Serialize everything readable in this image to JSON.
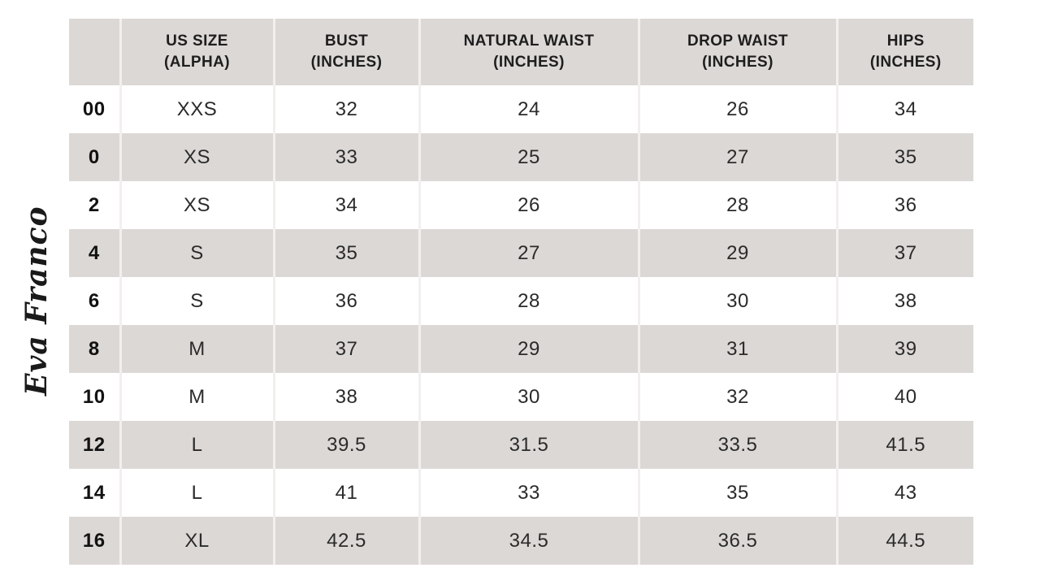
{
  "brand": {
    "logo_text": "Eva Franco"
  },
  "size_chart": {
    "columns": [
      {
        "line1": "",
        "line2": ""
      },
      {
        "line1": "US SIZE",
        "line2": "(ALPHA)"
      },
      {
        "line1": "BUST",
        "line2": "(INCHES)"
      },
      {
        "line1": "NATURAL WAIST",
        "line2": "(INCHES)"
      },
      {
        "line1": "DROP WAIST",
        "line2": "(INCHES)"
      },
      {
        "line1": "HIPS",
        "line2": "(INCHES)"
      }
    ],
    "fields": [
      "us_size",
      "alpha",
      "bust",
      "natural_waist",
      "drop_waist",
      "hips"
    ],
    "rows": [
      {
        "us_size": "00",
        "alpha": "XXS",
        "bust": "32",
        "natural_waist": "24",
        "drop_waist": "26",
        "hips": "34"
      },
      {
        "us_size": "0",
        "alpha": "XS",
        "bust": "33",
        "natural_waist": "25",
        "drop_waist": "27",
        "hips": "35"
      },
      {
        "us_size": "2",
        "alpha": "XS",
        "bust": "34",
        "natural_waist": "26",
        "drop_waist": "28",
        "hips": "36"
      },
      {
        "us_size": "4",
        "alpha": "S",
        "bust": "35",
        "natural_waist": "27",
        "drop_waist": "29",
        "hips": "37"
      },
      {
        "us_size": "6",
        "alpha": "S",
        "bust": "36",
        "natural_waist": "28",
        "drop_waist": "30",
        "hips": "38"
      },
      {
        "us_size": "8",
        "alpha": "M",
        "bust": "37",
        "natural_waist": "29",
        "drop_waist": "31",
        "hips": "39"
      },
      {
        "us_size": "10",
        "alpha": "M",
        "bust": "38",
        "natural_waist": "30",
        "drop_waist": "32",
        "hips": "40"
      },
      {
        "us_size": "12",
        "alpha": "L",
        "bust": "39.5",
        "natural_waist": "31.5",
        "drop_waist": "33.5",
        "hips": "41.5"
      },
      {
        "us_size": "14",
        "alpha": "L",
        "bust": "41",
        "natural_waist": "33",
        "drop_waist": "35",
        "hips": "43"
      },
      {
        "us_size": "16",
        "alpha": "XL",
        "bust": "42.5",
        "natural_waist": "34.5",
        "drop_waist": "36.5",
        "hips": "44.5"
      }
    ],
    "colors": {
      "stripe_bg": "#dcd8d6",
      "header_bg": "#dcd8d6",
      "separator": "#f2f0ef",
      "text": "#2b2b2b"
    }
  },
  "chart_data": {
    "type": "table",
    "brand": "Eva Franco",
    "columns": [
      "",
      "US SIZE (ALPHA)",
      "BUST (INCHES)",
      "NATURAL WAIST (INCHES)",
      "DROP WAIST (INCHES)",
      "HIPS (INCHES)"
    ],
    "rows": [
      [
        "00",
        "XXS",
        32,
        24,
        26,
        34
      ],
      [
        "0",
        "XS",
        33,
        25,
        27,
        35
      ],
      [
        "2",
        "XS",
        34,
        26,
        28,
        36
      ],
      [
        "4",
        "S",
        35,
        27,
        29,
        37
      ],
      [
        "6",
        "S",
        36,
        28,
        30,
        38
      ],
      [
        "8",
        "M",
        37,
        29,
        31,
        39
      ],
      [
        "10",
        "M",
        38,
        30,
        32,
        40
      ],
      [
        "12",
        "L",
        39.5,
        31.5,
        33.5,
        41.5
      ],
      [
        "14",
        "L",
        41,
        33,
        35,
        43
      ],
      [
        "16",
        "XL",
        42.5,
        34.5,
        36.5,
        44.5
      ]
    ],
    "layout": {
      "striped_rows": true,
      "header_background": "#dcd8d6",
      "stripe_background": "#dcd8d6"
    }
  }
}
